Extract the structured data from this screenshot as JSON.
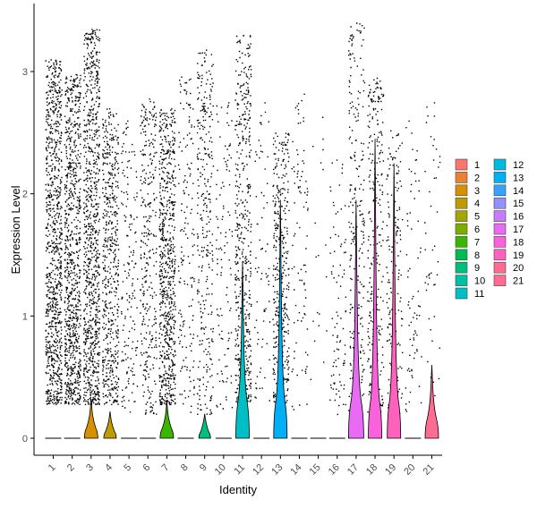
{
  "chart_data": {
    "type": "violin",
    "xlabel": "Identity",
    "ylabel": "Expression Level",
    "ylim": [
      -0.15,
      3.5
    ],
    "yticks": [
      0,
      1,
      2,
      3
    ],
    "categories": [
      "1",
      "2",
      "3",
      "4",
      "5",
      "6",
      "7",
      "8",
      "9",
      "10",
      "11",
      "12",
      "13",
      "14",
      "15",
      "16",
      "17",
      "18",
      "19",
      "20",
      "21"
    ],
    "colors": [
      "#F8766D",
      "#EA8331",
      "#D89000",
      "#C09B00",
      "#A3A500",
      "#7CAE00",
      "#39B600",
      "#00BB4E",
      "#00BF7D",
      "#00C1A3",
      "#00BFC4",
      "#00BAE0",
      "#00B0F6",
      "#35A2FF",
      "#9590FF",
      "#C77CFF",
      "#E76BF3",
      "#FA62DB",
      "#FF62BC",
      "#FF6C91",
      "#FF6C91"
    ],
    "violin_max": [
      0.05,
      0.1,
      0.32,
      0.22,
      0.03,
      0.05,
      0.3,
      0.05,
      0.2,
      0.05,
      1.45,
      0.05,
      1.95,
      0.05,
      0.05,
      0.05,
      1.95,
      2.45,
      2.25,
      0.05,
      0.6
    ],
    "violin_width": [
      0.05,
      0.1,
      0.75,
      0.7,
      0.03,
      0.05,
      0.75,
      0.05,
      0.65,
      0.05,
      0.75,
      0.05,
      0.75,
      0.05,
      0.05,
      0.05,
      0.85,
      0.75,
      0.75,
      0.05,
      0.75
    ],
    "point_max": [
      3.1,
      2.98,
      3.35,
      2.7,
      2.6,
      2.78,
      2.7,
      2.96,
      3.18,
      2.75,
      3.3,
      2.75,
      2.5,
      2.82,
      2.63,
      2.28,
      3.4,
      2.95,
      2.52,
      2.6,
      2.75
    ],
    "point_density": [
      1.0,
      0.95,
      1.0,
      0.6,
      0.18,
      0.35,
      0.8,
      0.18,
      0.35,
      0.12,
      0.55,
      0.08,
      0.45,
      0.1,
      0.02,
      0.1,
      0.28,
      0.3,
      0.2,
      0.08,
      0.05
    ],
    "legend": {
      "position": "right",
      "columns": 2
    }
  }
}
